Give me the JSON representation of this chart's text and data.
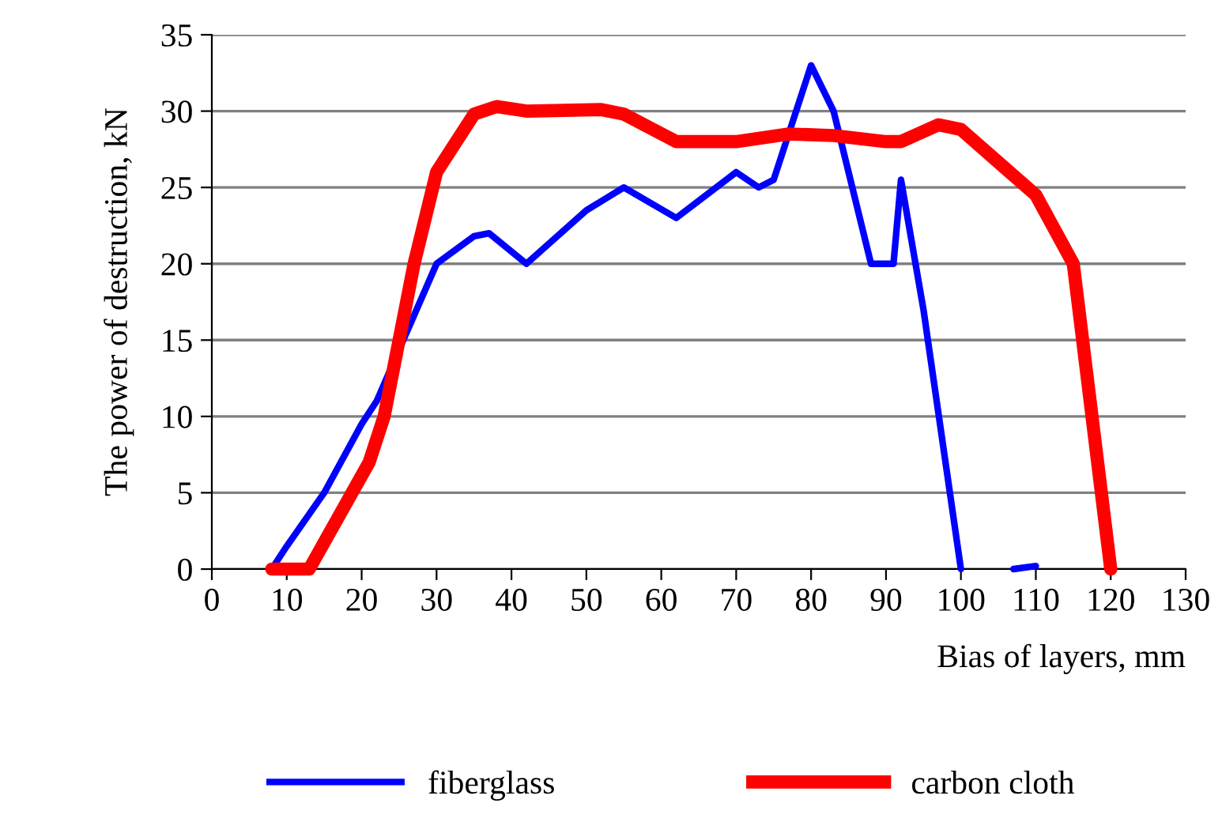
{
  "chart_data": {
    "type": "line",
    "xlabel": "Bias of layers, mm",
    "ylabel": "The power of destruction, kN",
    "xlim": [
      0,
      130
    ],
    "xticks": [
      0,
      10,
      20,
      30,
      40,
      50,
      60,
      70,
      80,
      90,
      100,
      110,
      120,
      130
    ],
    "ylim": [
      0,
      35
    ],
    "yticks": [
      0,
      5,
      10,
      15,
      20,
      25,
      30,
      35
    ],
    "grid": "y",
    "legend": "bottom",
    "marker": "none",
    "line_style": "solid",
    "series": [
      {
        "name": "fiberglass",
        "color": "#0000ff",
        "x": [
          8,
          10,
          15,
          20,
          22,
          30,
          35,
          37,
          42,
          50,
          55,
          62,
          70,
          73,
          75,
          80,
          83,
          88,
          91,
          92,
          95,
          100,
          104,
          107,
          110
        ],
        "values": [
          0,
          1.5,
          5,
          9.5,
          11,
          20,
          21.8,
          22,
          20,
          23.5,
          25,
          23,
          26,
          25,
          25.5,
          33,
          30,
          20,
          20,
          25.5,
          17,
          0,
          null,
          0,
          0.2
        ]
      },
      {
        "name": "carbon cloth",
        "color": "#ff0000",
        "x": [
          8,
          13,
          21,
          23,
          27,
          30,
          35,
          38,
          42,
          52,
          55,
          62,
          70,
          77,
          83,
          90,
          92,
          97,
          100,
          110,
          115,
          120
        ],
        "values": [
          0,
          0,
          7,
          10,
          20,
          26,
          29.8,
          30.3,
          30,
          30.1,
          29.8,
          28,
          28,
          28.5,
          28.4,
          28,
          28,
          29.1,
          28.8,
          24.5,
          20,
          0
        ]
      }
    ]
  }
}
